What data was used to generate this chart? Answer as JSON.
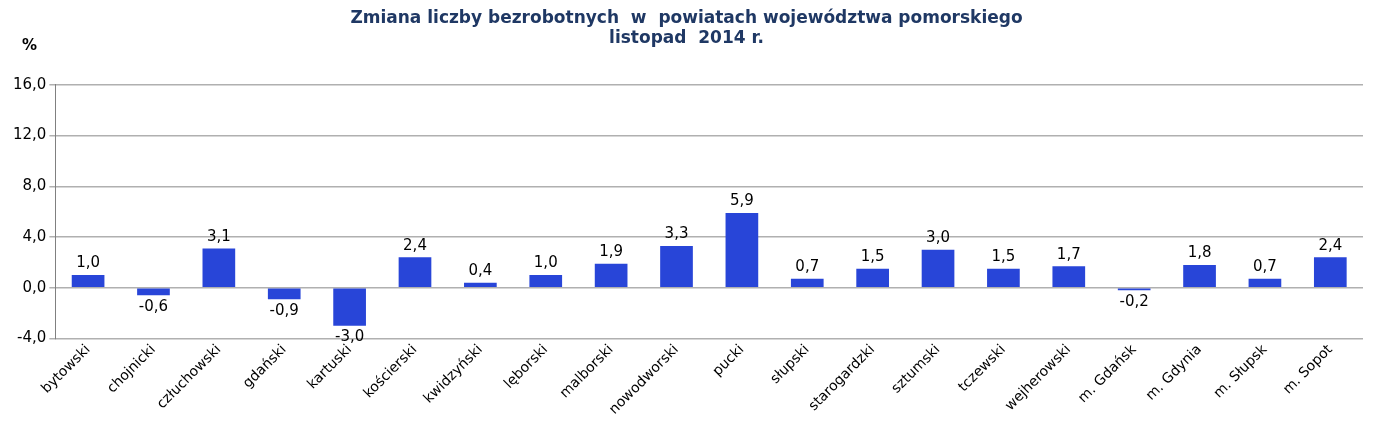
{
  "chart_data": {
    "type": "bar",
    "title": "Zmiana liczby bezrobotnych  w  powiatach województwa pomorskiego\nlistopad  2014 r.",
    "ylabel": "%",
    "categories": [
      "bytowski",
      "chojnicki",
      "człuchowski",
      "gdański",
      "kartuski",
      "kościerski",
      "kwidzyński",
      "lęborski",
      "malborski",
      "nowodworski",
      "pucki",
      "słupski",
      "starogardzki",
      "sztumski",
      "tczewski",
      "wejherowski",
      "m. Gdańsk",
      "m. Gdynia",
      "m. Słupsk",
      "m. Sopot"
    ],
    "values": [
      1.0,
      -0.6,
      3.1,
      -0.9,
      -3.0,
      2.4,
      0.4,
      1.0,
      1.9,
      3.3,
      5.9,
      0.7,
      1.5,
      3.0,
      1.5,
      1.7,
      -0.2,
      1.8,
      0.7,
      2.4
    ],
    "value_labels": [
      "1,0",
      "-0,6",
      "3,1",
      "-0,9",
      "-3,0",
      "2,4",
      "0,4",
      "1,0",
      "1,9",
      "3,3",
      "5,9",
      "0,7",
      "1,5",
      "3,0",
      "1,5",
      "1,7",
      "-0,2",
      "1,8",
      "0,7",
      "2,4"
    ],
    "color": "#2845d8",
    "ylim": [
      -4,
      16
    ],
    "yticks": [
      {
        "value": -4,
        "label": "-4,0"
      },
      {
        "value": 0,
        "label": "0,0"
      },
      {
        "value": 4,
        "label": "4,0"
      },
      {
        "value": 8,
        "label": "8,0"
      },
      {
        "value": 12,
        "label": "12,0"
      },
      {
        "value": 16,
        "label": "16,0"
      }
    ],
    "grid": "y",
    "legend": false
  }
}
